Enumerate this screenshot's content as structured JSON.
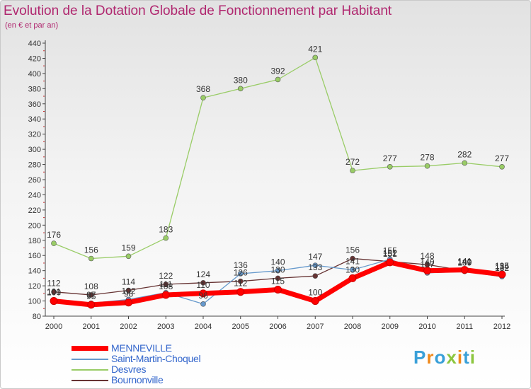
{
  "title": "Evolution de la Dotation Globale de Fonctionnement par Habitant",
  "subtitle": "(en € et par an)",
  "logo": {
    "text": "Proxiti",
    "letters": [
      {
        "ch": "P",
        "color": "#3aa0d8"
      },
      {
        "ch": "r",
        "color": "#f08a1c"
      },
      {
        "ch": "o",
        "color": "#3aa0d8"
      },
      {
        "ch": "x",
        "color": "#8cc63f"
      },
      {
        "ch": "i",
        "color": "#f08a1c"
      },
      {
        "ch": "t",
        "color": "#3aa0d8"
      },
      {
        "ch": "i",
        "color": "#8cc63f"
      }
    ]
  },
  "chart_data": {
    "type": "line",
    "x": [
      "2000",
      "2001",
      "2002",
      "2003",
      "2004",
      "2005",
      "2006",
      "2007",
      "2008",
      "2009",
      "2010",
      "2011",
      "2012"
    ],
    "ylim": [
      80,
      440
    ],
    "ytick_step": 20,
    "grid": false,
    "legend_position": "bottom-left",
    "series": [
      {
        "name": "MENNEVILLE",
        "color": "#ff0000",
        "values": [
          100,
          95,
          98,
          108,
          110,
          112,
          115,
          100,
          130,
          151,
          140,
          141,
          135
        ]
      },
      {
        "name": "Saint-Martin-Choquel",
        "color": "#6699cc",
        "values": [
          101,
          97,
          102,
          111,
          96,
          136,
          140,
          147,
          141,
          155,
          137,
          139,
          132
        ]
      },
      {
        "name": "Desvres",
        "color": "#99cc66",
        "values": [
          176,
          156,
          159,
          183,
          368,
          380,
          392,
          421,
          272,
          277,
          278,
          282,
          277
        ]
      },
      {
        "name": "Bournonville",
        "color": "#663333",
        "values": [
          112,
          108,
          114,
          122,
          124,
          126,
          130,
          133,
          156,
          152,
          148,
          140,
          134
        ]
      }
    ],
    "point_labels": [
      [
        "100",
        "95",
        "98",
        "108",
        "110",
        "112",
        "115",
        "100",
        "130",
        "151",
        "140",
        "141",
        "135"
      ],
      [
        "101",
        "97",
        "102",
        "111",
        "96",
        "136",
        "140",
        "147",
        "141",
        "155",
        "137",
        "139",
        "132"
      ],
      [
        "176",
        "156",
        "159",
        "183",
        "368",
        "380",
        "392",
        "421",
        "272",
        "277",
        "278",
        "282",
        "277"
      ],
      [
        "112",
        "108",
        "114",
        "122",
        "124",
        "126",
        "130",
        "133",
        "156",
        "152",
        "148",
        "140",
        "134"
      ]
    ]
  }
}
